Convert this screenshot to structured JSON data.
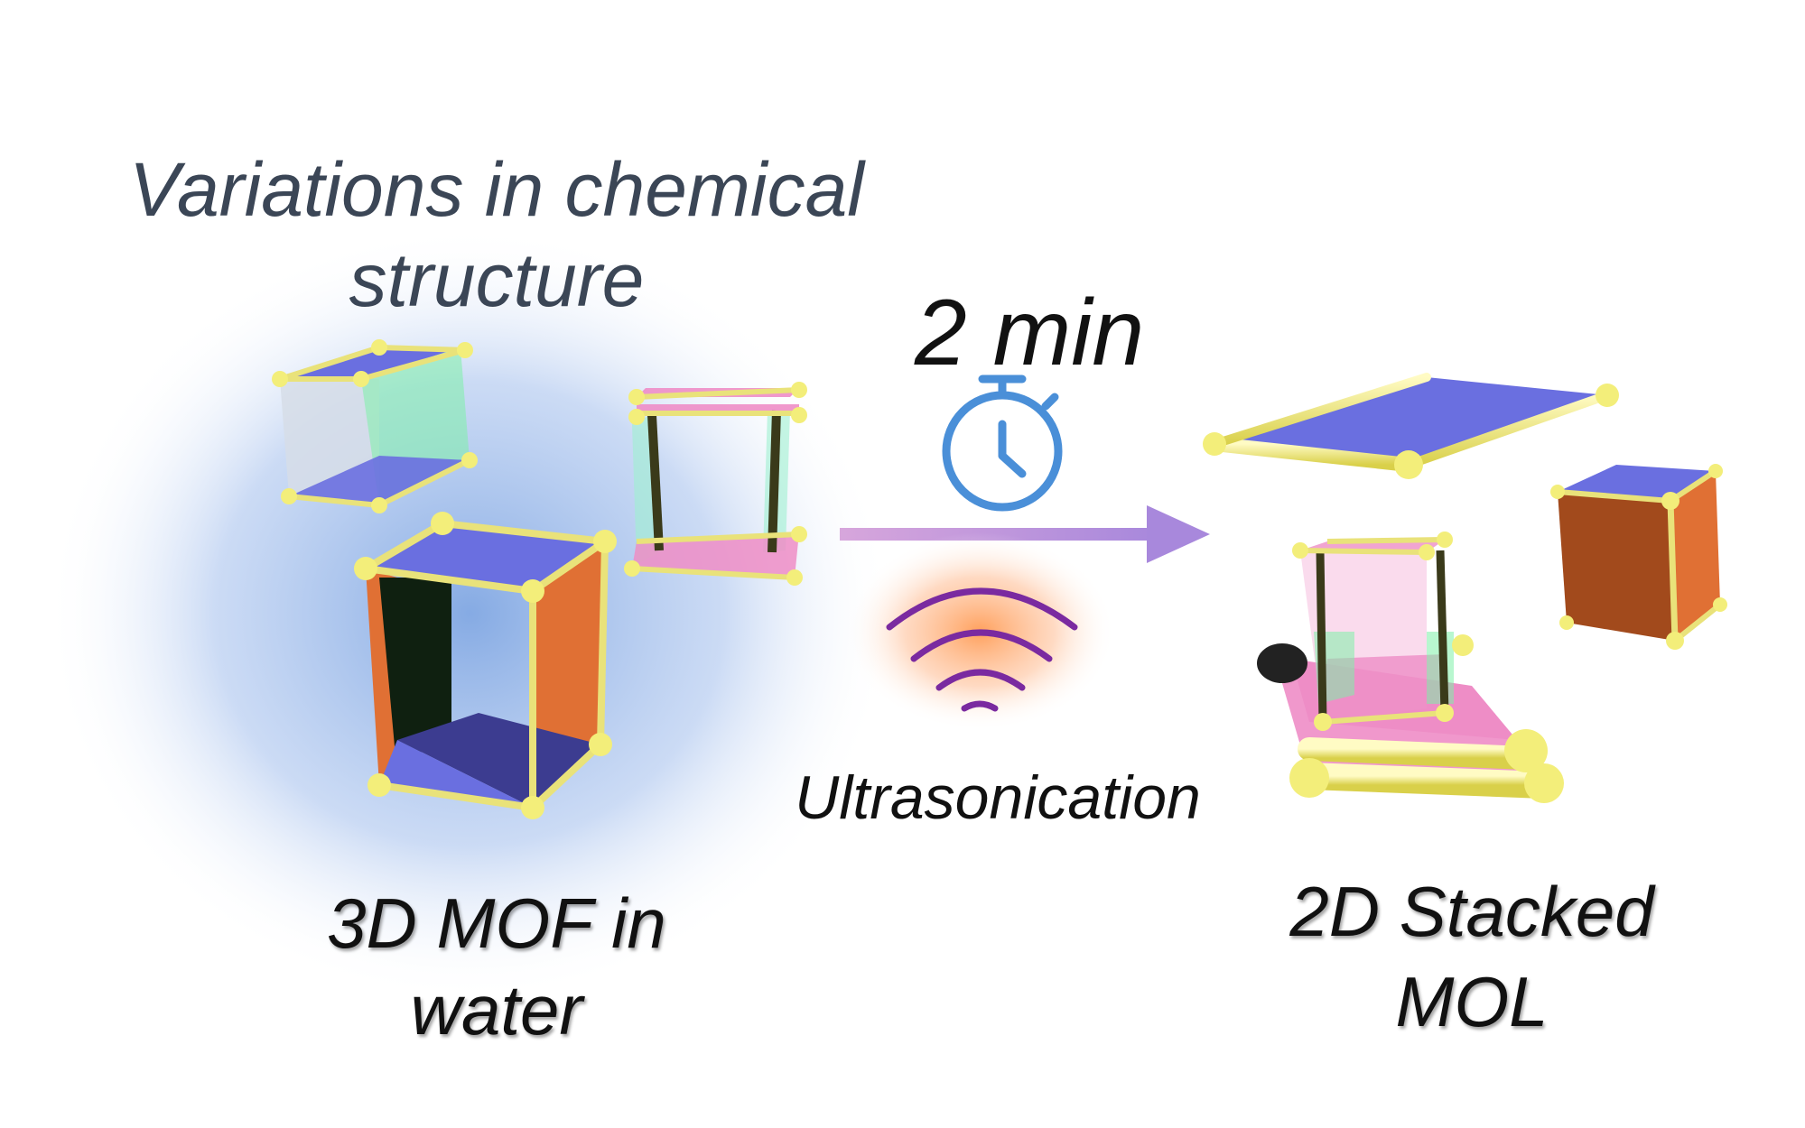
{
  "labels": {
    "title": "Variations in chemical structure",
    "duration": "2 min",
    "method": "Ultrasonication",
    "start_state": "3D MOF in water",
    "end_state": "2D Stacked MOL"
  },
  "colors": {
    "linker_blue": "#6a6fe0",
    "linker_pink": "#ee8dc6",
    "linker_orange": "#e07034",
    "node_yellow": "#f3ee7a",
    "arrow": "#b98ad6",
    "timer": "#4a8fd8",
    "sound_waves": "#7a2aa0",
    "halo_blue": "#7fa6e2",
    "halo_orange": "#ff9c55"
  },
  "icons": {
    "timer": "stopwatch-icon",
    "sound": "sound-waves-icon"
  }
}
